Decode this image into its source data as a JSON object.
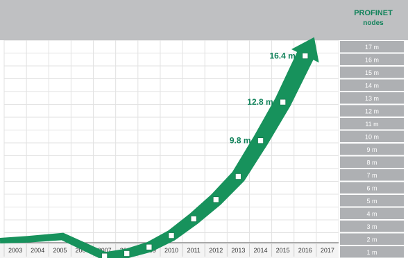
{
  "colors": {
    "arrow": "#17925c",
    "label": "#11825a",
    "top_band": "#bfc0c2",
    "scale_cell": "#aeb0b3",
    "scale_text": "#ffffff",
    "grid": "#e2e2e2",
    "point_fill": "#ffffff"
  },
  "chart_data": {
    "type": "line",
    "title": "PROFINET nodes",
    "x": [
      2007,
      2008,
      2009,
      2010,
      2011,
      2012,
      2013,
      2014,
      2015,
      2016
    ],
    "y": [
      0.8,
      1.0,
      1.5,
      2.4,
      3.7,
      5.2,
      7.0,
      9.8,
      12.8,
      16.4
    ],
    "xticks": [
      "2003",
      "2004",
      "2005",
      "2006",
      "2007",
      "2008",
      "2009",
      "2010",
      "2011",
      "2012",
      "2013",
      "2014",
      "2015",
      "2016",
      "2017"
    ],
    "yticks": [
      "17 m",
      "16 m",
      "15 m",
      "14 m",
      "13 m",
      "12 m",
      "11 m",
      "10 m",
      "9 m",
      "8 m",
      "7 m",
      "6 m",
      "5 m",
      "4 m",
      "3 m",
      "2 m",
      "1 m"
    ],
    "annotations": [
      {
        "x": 2014,
        "y": 9.8,
        "text": "9.8 m"
      },
      {
        "x": 2015,
        "y": 12.8,
        "text": "12.8 m"
      },
      {
        "x": 2016,
        "y": 16.4,
        "text": "16.4 m"
      }
    ],
    "xlim": [
      2003,
      2017
    ],
    "ylim": [
      0,
      18
    ],
    "grid": true,
    "legend": "none"
  }
}
